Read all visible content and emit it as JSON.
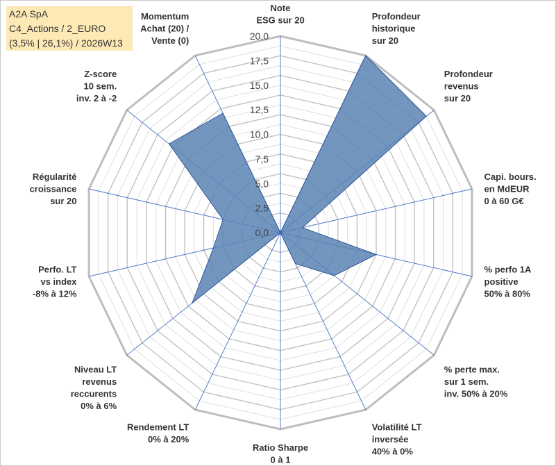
{
  "info": {
    "line1": "A2A SpA",
    "line2": "C4_Actions / 2_EURO",
    "line3": "(3,5% | 26,1%) / 2026W13"
  },
  "chart_data": {
    "type": "radar",
    "axes": [
      [
        "Note",
        "ESG sur 20"
      ],
      [
        "Profondeur",
        "historique",
        "sur 20"
      ],
      [
        "Profondeur",
        "revenus",
        "sur 20"
      ],
      [
        "Capi. bours.",
        "en MdEUR",
        "0 à 60 G€"
      ],
      [
        "% perfo 1A",
        "positive",
        "50% à 80%"
      ],
      [
        "% perte max.",
        "sur 1 sem.",
        "inv. 50% à 20%"
      ],
      [
        "Volatilité LT",
        "inversée",
        "40% à 0%"
      ],
      [
        "Ratio Sharpe",
        "0 à 1"
      ],
      [
        "Rendement LT",
        "0% à 20%"
      ],
      [
        "Niveau LT",
        "revenus",
        "reccurents",
        "0% à 6%"
      ],
      [
        "Perfo. LT",
        "vs index",
        "-8% à 12%"
      ],
      [
        "Régularité",
        "croissance",
        "sur 20"
      ],
      [
        "Z-score",
        "10 sem.",
        "inv. 2 à -2"
      ],
      [
        "Momentum",
        "Achat (20) /",
        "Vente (0)"
      ]
    ],
    "tick_labels": [
      "0,0",
      "2,5",
      "5,0",
      "7,5",
      "10,0",
      "12,5",
      "15,0",
      "17,5",
      "20,0"
    ],
    "range": [
      0,
      20
    ],
    "series": [
      {
        "values": [
          0.0,
          20.0,
          19.0,
          2.3,
          10.0,
          7.0,
          3.5,
          0.0,
          0.0,
          11.5,
          7.0,
          6.0,
          14.5,
          13.5
        ]
      }
    ],
    "colors": {
      "fill": "#5b84b4",
      "stroke": "#2f5597",
      "grid": "#bfbfbf",
      "spoke": "#4472c4"
    }
  }
}
